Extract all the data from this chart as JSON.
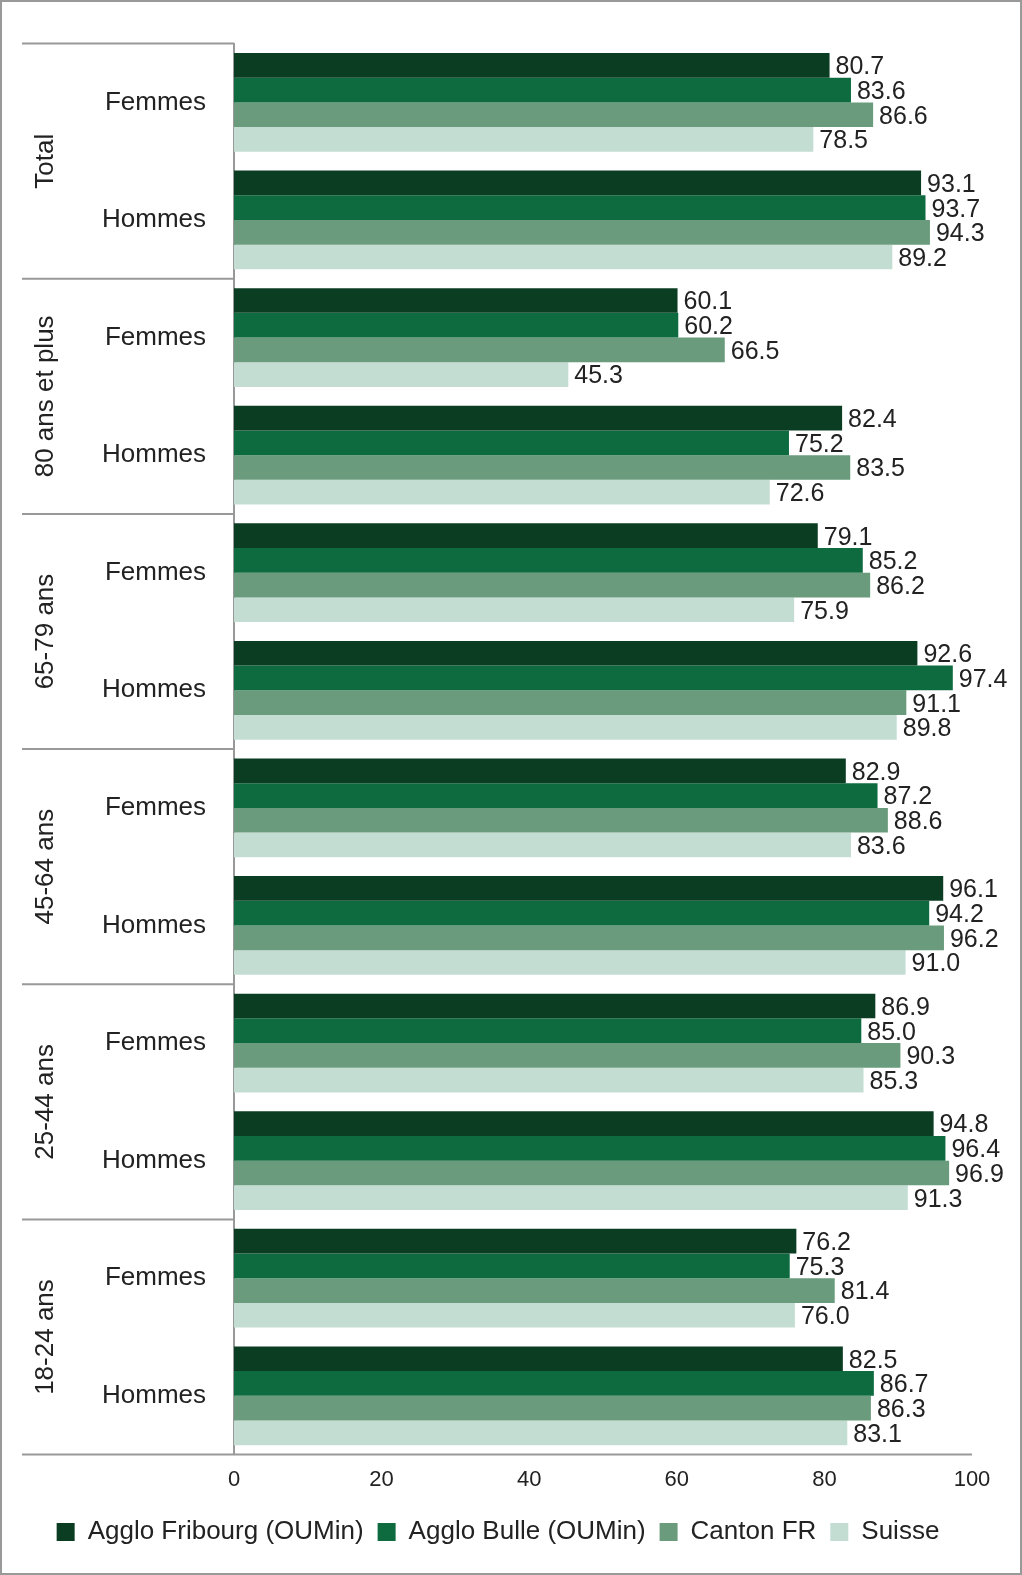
{
  "chart_data": {
    "type": "bar",
    "orientation": "horizontal",
    "categories": [
      "Femmes",
      "Hommes",
      "Femmes",
      "Hommes",
      "Femmes",
      "Hommes",
      "Femmes",
      "Hommes",
      "Femmes",
      "Hommes",
      "Femmes",
      "Hommes"
    ],
    "annotations": [
      "Total",
      "80 ans et plus",
      "65-79 ans",
      "45-64 ans",
      "25-44 ans",
      "18-24 ans"
    ],
    "series": [
      {
        "name": "Agglo Fribourg (OUMin)",
        "color": "#0b3d23",
        "values": [
          80.7,
          93.1,
          60.1,
          82.4,
          79.1,
          92.6,
          82.9,
          96.1,
          86.9,
          94.8,
          76.2,
          82.5
        ],
        "value_labels": [
          "80.7",
          "93.1",
          "60.1",
          "82.4",
          "79.1",
          "92.6",
          "82.9",
          "96.1",
          "86.9",
          "94.8",
          "76.2",
          "82.5"
        ]
      },
      {
        "name": "Agglo Bulle (OUMin)",
        "color": "#0e6b40",
        "values": [
          83.6,
          93.7,
          60.2,
          75.2,
          85.2,
          97.4,
          87.2,
          94.2,
          85.0,
          96.4,
          75.3,
          86.7
        ],
        "value_labels": [
          "83.6",
          "93.7",
          "60.2",
          "75.2",
          "85.2",
          "97.4",
          "87.2",
          "94.2",
          "85.0",
          "96.4",
          "75.3",
          "86.7"
        ]
      },
      {
        "name": "Canton FR",
        "color": "#6a9b7c",
        "values": [
          86.6,
          94.3,
          66.5,
          83.5,
          86.2,
          91.1,
          88.6,
          96.2,
          90.3,
          96.9,
          81.4,
          86.3
        ],
        "value_labels": [
          "86.6",
          "94.3",
          "66.5",
          "83.5",
          "86.2",
          "91.1",
          "88.6",
          "96.2",
          "90.3",
          "96.9",
          "81.4",
          "86.3"
        ]
      },
      {
        "name": "Suisse",
        "color": "#c3ddd3",
        "values": [
          78.5,
          89.2,
          45.3,
          72.6,
          75.9,
          89.8,
          83.6,
          91.0,
          85.3,
          91.3,
          76.0,
          83.1
        ],
        "value_labels": [
          "78.5",
          "89.2",
          "45.3",
          "72.6",
          "75.9",
          "89.8",
          "83.6",
          "91.0",
          "85.3",
          "91.3",
          "76.0",
          "83.1"
        ]
      }
    ],
    "xlim": [
      0,
      100
    ],
    "xticks": [
      0,
      20,
      40,
      60,
      80,
      100
    ],
    "grid": false,
    "legend": "bottom"
  }
}
